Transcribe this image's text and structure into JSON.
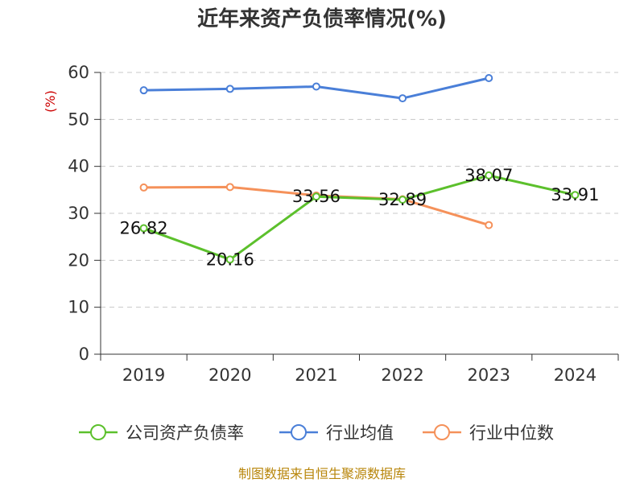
{
  "chart_data": {
    "type": "line",
    "title": "近年来资产负债率情况(%)",
    "ylabel": "(%)",
    "categories": [
      "2019",
      "2020",
      "2021",
      "2022",
      "2023",
      "2024"
    ],
    "ylim": [
      0,
      60
    ],
    "yticks": [
      "0",
      "10",
      "20",
      "30",
      "40",
      "50",
      "60"
    ],
    "grid": true,
    "legend_position": "bottom",
    "series": [
      {
        "name": "公司资产负债率",
        "color": "#5cc02c",
        "values": [
          26.82,
          20.16,
          33.56,
          32.89,
          38.07,
          33.91
        ],
        "labels": [
          "26.82",
          "20.16",
          "33.56",
          "32.89",
          "38.07",
          "33.91"
        ]
      },
      {
        "name": "行业均值",
        "color": "#4a7fd8",
        "values": [
          56.2,
          56.5,
          57.0,
          54.5,
          58.8,
          null
        ]
      },
      {
        "name": "行业中位数",
        "color": "#f5915a",
        "values": [
          35.5,
          35.6,
          33.8,
          33.0,
          27.5,
          null
        ]
      }
    ]
  },
  "footer": {
    "source": "制图数据来自恒生聚源数据库"
  }
}
